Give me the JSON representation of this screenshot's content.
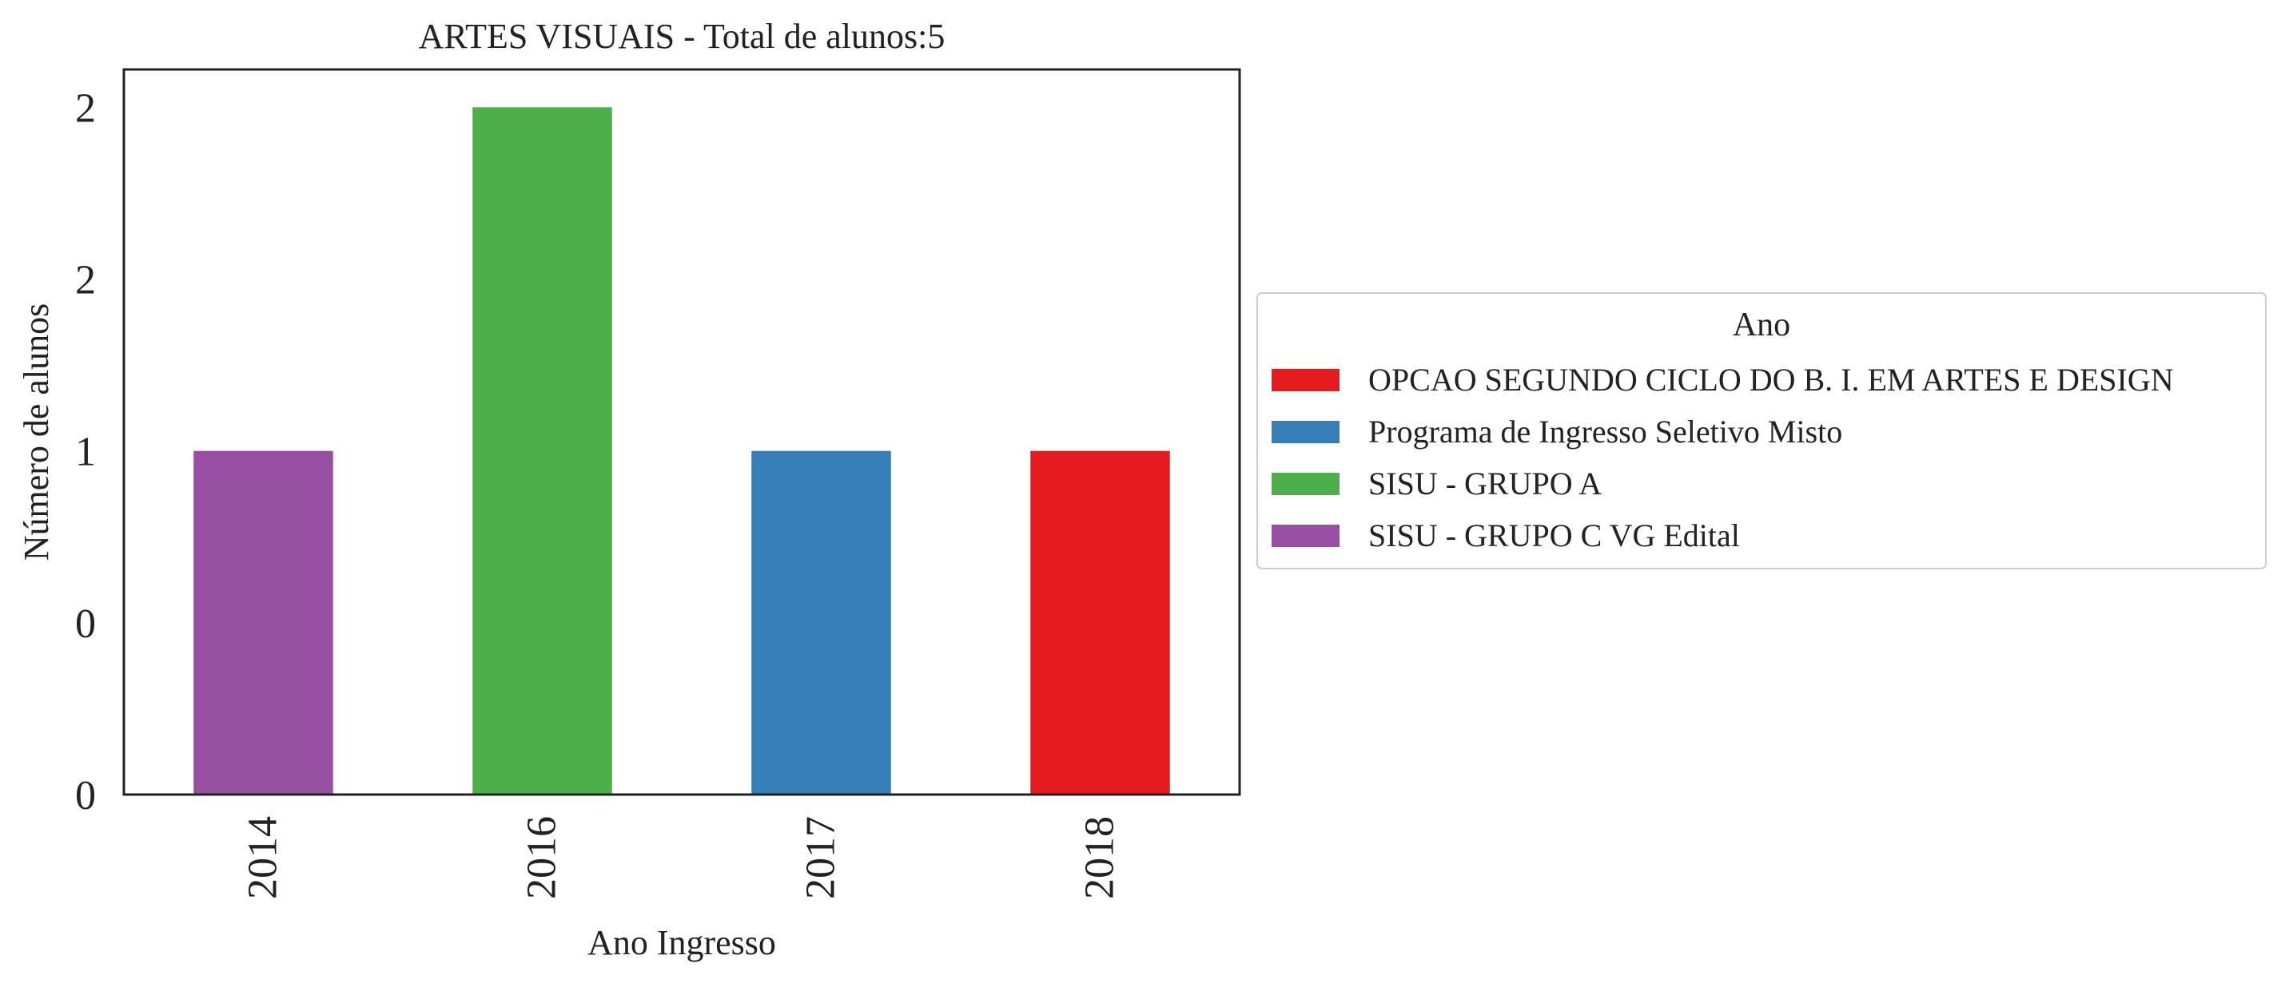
{
  "chart_data": {
    "type": "bar",
    "title": "ARTES VISUAIS - Total de alunos:5",
    "xlabel": "Ano Ingresso",
    "ylabel": "Número de alunos",
    "categories": [
      "2014",
      "2016",
      "2017",
      "2018"
    ],
    "values": [
      1,
      2,
      1,
      1
    ],
    "bar_series": [
      "SISU - GRUPO C VG Edital",
      "SISU - GRUPO A",
      "Programa de Ingresso Seletivo Misto",
      "OPCAO SEGUNDO CICLO DO B. I. EM ARTES E DESIGN"
    ],
    "ylim": [
      0,
      2.11
    ],
    "yticks": [
      {
        "value": 0,
        "label": "0"
      },
      {
        "value": 0.5,
        "label": "0"
      },
      {
        "value": 1,
        "label": "1"
      },
      {
        "value": 1.5,
        "label": "2"
      },
      {
        "value": 2,
        "label": "2"
      }
    ],
    "grid": false,
    "legend": {
      "title": "Ano",
      "placement": "right",
      "entries": [
        {
          "name": "OPCAO SEGUNDO CICLO DO B. I. EM ARTES E DESIGN",
          "color": "#e41a1c"
        },
        {
          "name": "Programa de Ingresso Seletivo Misto",
          "color": "#377eb8"
        },
        {
          "name": "SISU - GRUPO A",
          "color": "#4daf4a"
        },
        {
          "name": "SISU - GRUPO C VG Edital",
          "color": "#984ea3"
        }
      ]
    }
  }
}
